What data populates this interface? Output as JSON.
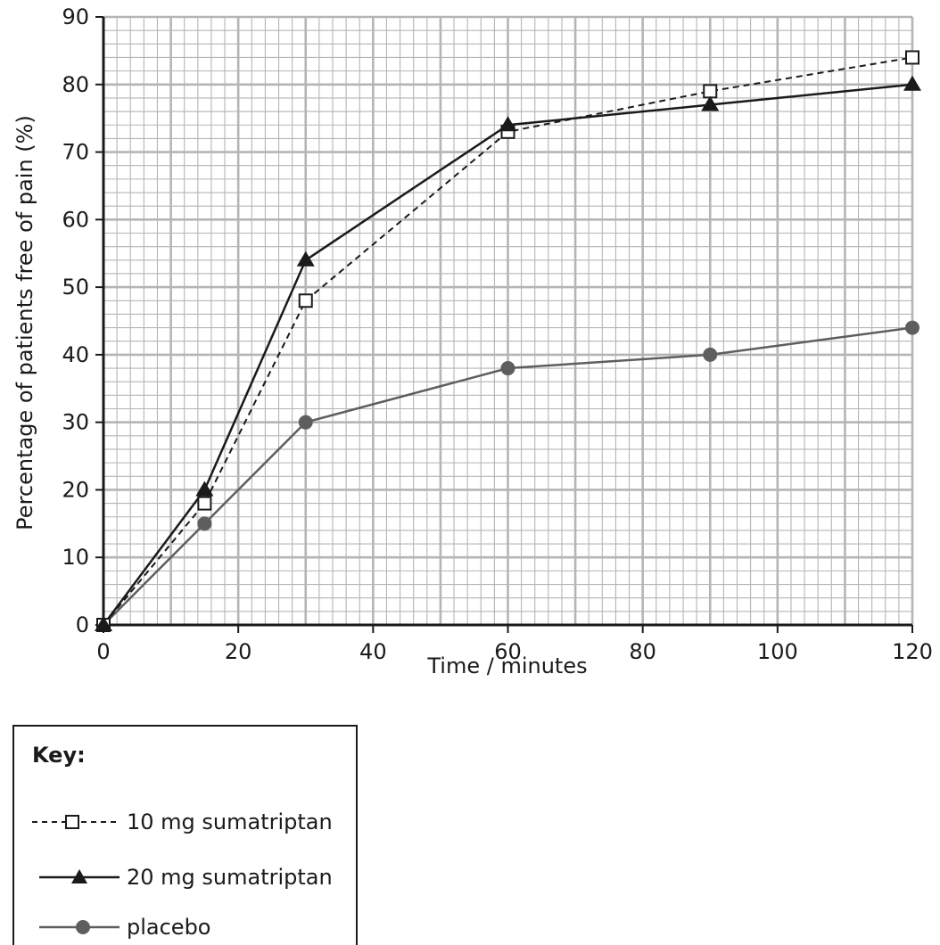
{
  "chart_data": {
    "type": "line",
    "xlabel": "Time / minutes",
    "ylabel": "Percentage of patients free of pain (%)",
    "xlim": [
      0,
      120
    ],
    "ylim": [
      0,
      90
    ],
    "xticks": [
      0,
      20,
      40,
      60,
      80,
      100,
      120
    ],
    "yticks": [
      0,
      10,
      20,
      30,
      40,
      50,
      60,
      70,
      80,
      90
    ],
    "grid": true,
    "legend_position": "below-left",
    "x": [
      0,
      15,
      30,
      60,
      90,
      120
    ],
    "series": [
      {
        "name": "10 mg sumatriptan",
        "values": [
          0,
          18,
          48,
          73,
          79,
          84
        ],
        "style": "dashed",
        "marker": "open-square",
        "color": "#1a1a1a"
      },
      {
        "name": "20 mg sumatriptan",
        "values": [
          0,
          20,
          54,
          74,
          77,
          80
        ],
        "style": "solid",
        "marker": "filled-triangle",
        "color": "#1a1a1a"
      },
      {
        "name": "placebo",
        "values": [
          0,
          15,
          30,
          38,
          40,
          44
        ],
        "style": "solid",
        "marker": "filled-circle",
        "color": "#5e5e5e"
      }
    ]
  },
  "legend": {
    "title": "Key:",
    "items": [
      {
        "label": "10 mg sumatriptan"
      },
      {
        "label": "20 mg sumatriptan"
      },
      {
        "label": "placebo"
      }
    ]
  },
  "colors": {
    "grid": "#b5b5b5",
    "axis": "#1a1a1a",
    "placebo": "#5e5e5e"
  }
}
